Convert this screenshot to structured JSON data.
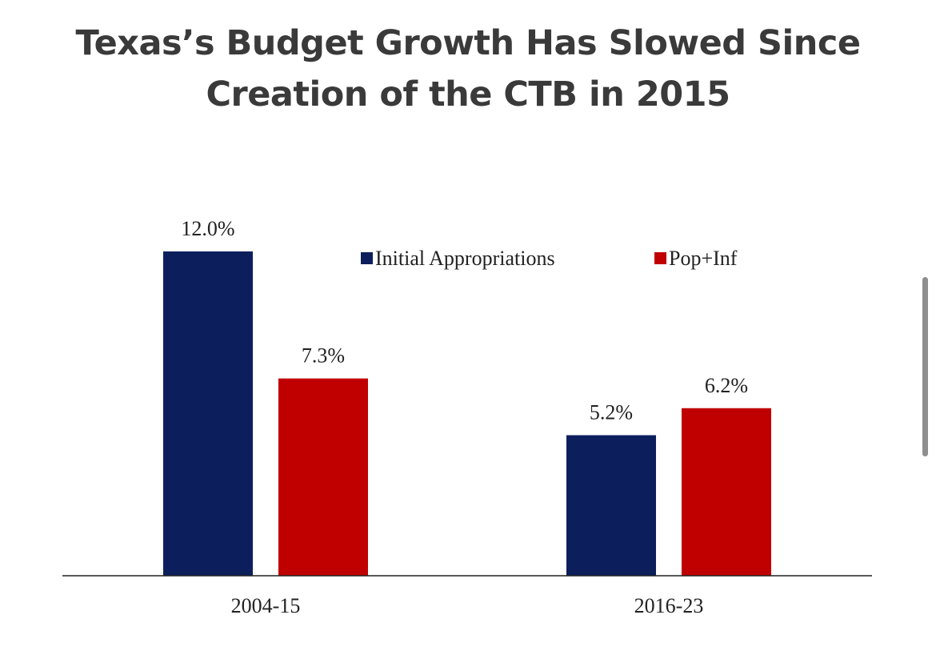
{
  "chart_data": {
    "type": "bar",
    "title_lines": [
      "Texas’s Budget Growth Has Slowed Since",
      "Creation of the CTB in 2015"
    ],
    "categories": [
      "2004-15",
      "2016-23"
    ],
    "series": [
      {
        "name": "Initial Appropriations",
        "color": "#0c1f5c",
        "values": [
          12.0,
          5.2
        ],
        "labels": [
          "12.0%",
          "5.2%"
        ]
      },
      {
        "name": "Pop+Inf",
        "color": "#c00000",
        "values": [
          7.3,
          6.2
        ],
        "labels": [
          "7.3%",
          "6.2%"
        ]
      }
    ],
    "xlabel": "",
    "ylabel": "",
    "ylim": [
      0,
      12.0
    ],
    "grid": false,
    "legend_position": "top-right",
    "y_axis_visible": false
  }
}
